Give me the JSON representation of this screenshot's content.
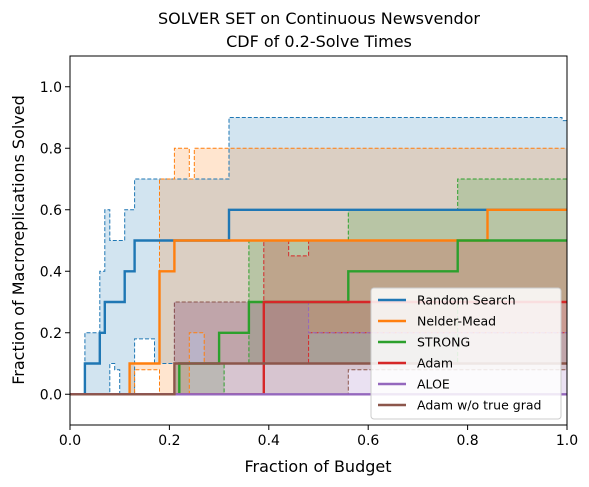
{
  "chart_data": {
    "type": "line",
    "title": "SOLVER SET on Continuous Newsvendor",
    "subtitle": "CDF of 0.2-Solve Times",
    "xlabel": "Fraction of Budget",
    "ylabel": "Fraction of Macroreplications Solved",
    "xlim": [
      0,
      1
    ],
    "ylim": [
      -0.1,
      1.1
    ],
    "xticks": [
      0.0,
      0.2,
      0.4,
      0.6,
      0.8,
      1.0
    ],
    "xtick_labels": [
      "0.0",
      "0.2",
      "0.4",
      "0.6",
      "0.8",
      "1.0"
    ],
    "yticks": [
      0.0,
      0.2,
      0.4,
      0.6,
      0.8,
      1.0
    ],
    "ytick_labels": [
      "0.0",
      "0.2",
      "0.4",
      "0.6",
      "0.8",
      "1.0"
    ],
    "grid": false,
    "legend_position": "bottom-right",
    "series": [
      {
        "name": "Random Search",
        "color": "#1f77b4",
        "x": [
          0.0,
          0.03,
          0.03,
          0.06,
          0.06,
          0.07,
          0.07,
          0.11,
          0.11,
          0.13,
          0.13,
          0.32,
          0.32,
          0.84,
          0.84,
          1.0
        ],
        "y": [
          0.0,
          0.0,
          0.1,
          0.1,
          0.2,
          0.2,
          0.3,
          0.3,
          0.4,
          0.4,
          0.5,
          0.5,
          0.6,
          0.6,
          0.6,
          0.6
        ],
        "ci_upper": {
          "x": [
            0.0,
            0.03,
            0.03,
            0.06,
            0.06,
            0.07,
            0.07,
            0.08,
            0.08,
            0.09,
            0.09,
            0.11,
            0.11,
            0.13,
            0.13,
            0.18,
            0.18,
            0.32,
            0.32,
            0.99,
            0.99,
            1.0
          ],
          "y": [
            0.0,
            0.0,
            0.2,
            0.2,
            0.4,
            0.4,
            0.6,
            0.6,
            0.5,
            0.5,
            0.5,
            0.5,
            0.6,
            0.6,
            0.7,
            0.7,
            0.7,
            0.7,
            0.9,
            0.9,
            0.89,
            0.89
          ]
        },
        "ci_lower": {
          "x": [
            0.0,
            0.08,
            0.08,
            0.09,
            0.09,
            0.1,
            0.1,
            0.13,
            0.13,
            0.17,
            0.17,
            0.32,
            0.32,
            1.0
          ],
          "y": [
            0.0,
            0.0,
            0.1,
            0.1,
            0.08,
            0.08,
            0.0,
            0.0,
            0.18,
            0.18,
            0.1,
            0.1,
            0.1,
            0.1
          ]
        }
      },
      {
        "name": "Nelder-Mead",
        "color": "#ff7f0e",
        "x": [
          0.0,
          0.12,
          0.12,
          0.18,
          0.18,
          0.21,
          0.21,
          0.84,
          0.84,
          1.0
        ],
        "y": [
          0.0,
          0.0,
          0.1,
          0.1,
          0.4,
          0.4,
          0.5,
          0.5,
          0.6,
          0.6
        ],
        "ci_upper": {
          "x": [
            0.0,
            0.12,
            0.12,
            0.18,
            0.18,
            0.21,
            0.21,
            0.24,
            0.24,
            0.25,
            0.25,
            1.0
          ],
          "y": [
            0.0,
            0.0,
            0.1,
            0.1,
            0.7,
            0.7,
            0.8,
            0.8,
            0.7,
            0.7,
            0.8,
            0.8
          ]
        },
        "ci_lower": {
          "x": [
            0.0,
            0.13,
            0.13,
            0.18,
            0.18,
            0.24,
            0.24,
            0.27,
            0.27,
            1.0
          ],
          "y": [
            0.0,
            0.0,
            0.08,
            0.08,
            0.0,
            0.0,
            0.2,
            0.2,
            0.1,
            0.1
          ]
        }
      },
      {
        "name": "STRONG",
        "color": "#2ca02c",
        "x": [
          0.0,
          0.22,
          0.22,
          0.3,
          0.3,
          0.36,
          0.36,
          0.56,
          0.56,
          0.78,
          0.78,
          1.0
        ],
        "y": [
          0.0,
          0.0,
          0.1,
          0.1,
          0.2,
          0.2,
          0.3,
          0.3,
          0.4,
          0.4,
          0.5,
          0.5
        ],
        "ci_upper": {
          "x": [
            0.0,
            0.21,
            0.21,
            0.36,
            0.36,
            0.39,
            0.39,
            0.56,
            0.56,
            0.78,
            0.78,
            1.0
          ],
          "y": [
            0.0,
            0.0,
            0.1,
            0.1,
            0.5,
            0.5,
            0.5,
            0.5,
            0.6,
            0.6,
            0.7,
            0.7
          ]
        },
        "ci_lower": {
          "x": [
            0.0,
            0.31,
            0.31,
            0.56,
            0.56,
            0.78,
            0.78,
            1.0
          ],
          "y": [
            0.0,
            0.0,
            0.1,
            0.1,
            0.1,
            0.1,
            0.3,
            0.3
          ]
        }
      },
      {
        "name": "Adam",
        "color": "#d62728",
        "x": [
          0.0,
          0.39,
          0.39,
          0.47,
          0.47,
          0.78,
          0.78,
          1.0
        ],
        "y": [
          0.0,
          0.0,
          0.3,
          0.3,
          0.3,
          0.3,
          0.3,
          0.3
        ],
        "ci_upper": {
          "x": [
            0.0,
            0.39,
            0.39,
            0.44,
            0.44,
            0.48,
            0.48,
            0.78,
            0.78,
            1.0
          ],
          "y": [
            0.0,
            0.0,
            0.5,
            0.5,
            0.45,
            0.45,
            0.5,
            0.5,
            0.5,
            0.5
          ]
        },
        "ci_lower": {
          "x": [
            0.0,
            0.39,
            0.39,
            0.48,
            0.48,
            1.0
          ],
          "y": [
            0.0,
            0.0,
            0.1,
            0.1,
            0.2,
            0.2
          ]
        }
      },
      {
        "name": "ALOE",
        "color": "#9467bd",
        "x": [
          0.0,
          1.0
        ],
        "y": [
          0.0,
          0.0
        ],
        "ci_upper": {
          "x": [
            0.0,
            0.21,
            0.21,
            0.48,
            0.48,
            1.0
          ],
          "y": [
            0.0,
            0.0,
            0.3,
            0.3,
            0.2,
            0.2
          ]
        },
        "ci_lower": {
          "x": [
            0.0,
            1.0
          ],
          "y": [
            0.0,
            0.0
          ]
        }
      },
      {
        "name": "Adam w/o true grad",
        "color": "#8c564b",
        "x": [
          0.0,
          0.21,
          0.21,
          1.0
        ],
        "y": [
          0.0,
          0.0,
          0.1,
          0.1
        ],
        "ci_upper": {
          "x": [
            0.0,
            0.21,
            0.21,
            1.0
          ],
          "y": [
            0.0,
            0.0,
            0.3,
            0.3
          ]
        },
        "ci_lower": {
          "x": [
            0.0,
            0.56,
            0.56,
            1.0
          ],
          "y": [
            0.0,
            0.0,
            0.08,
            0.08
          ]
        }
      }
    ]
  }
}
